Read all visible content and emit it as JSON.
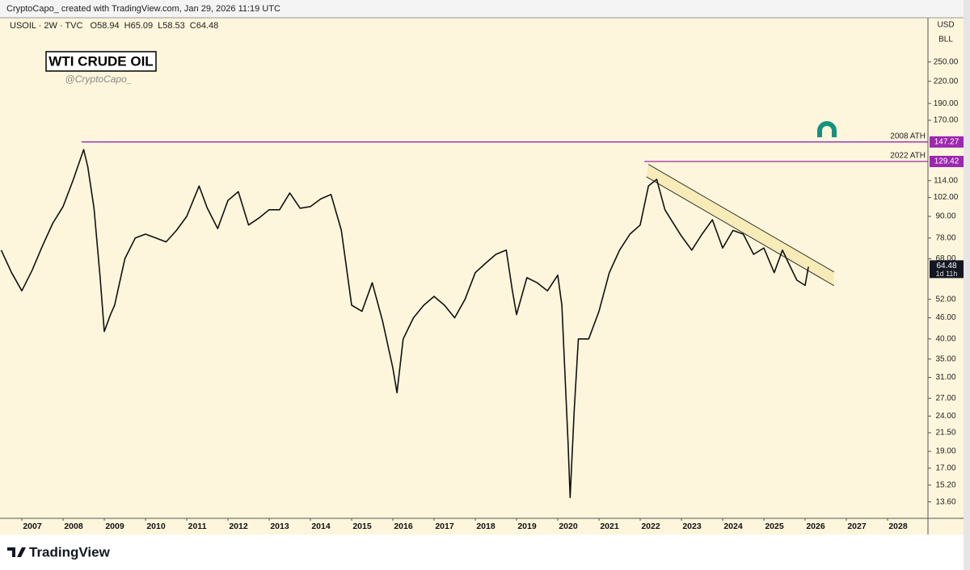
{
  "header": {
    "text": "CryptoCapo_ created with TradingView.com, Jan 29, 2026 11:19 UTC"
  },
  "symbol": {
    "name": "USOIL · 2W · TVC",
    "ohlc": [
      {
        "name": "O",
        "value": 58.94
      },
      {
        "name": "H",
        "value": 65.09
      },
      {
        "name": "L",
        "value": 58.53
      },
      {
        "name": "C",
        "value": 64.48
      }
    ]
  },
  "currency": "USD",
  "unit": "BLL",
  "footer": {
    "brand": "TradingView"
  },
  "chart_data": {
    "type": "line",
    "title": "WTI CRUDE OIL",
    "subtitle": "@CryptoCapo_",
    "log": true,
    "color": "#111111",
    "background": "#fdf6dc",
    "xlim": [
      2006.47,
      2028.98
    ],
    "xticks": [
      2007,
      2008,
      2009,
      2010,
      2011,
      2012,
      2013,
      2014,
      2015,
      2016,
      2017,
      2018,
      2019,
      2020,
      2021,
      2022,
      2023,
      2024,
      2025,
      2026,
      2027,
      2028
    ],
    "ylim": [
      12.2,
      335
    ],
    "yticks": [
      {
        "value": 250,
        "label": "250.00"
      },
      {
        "value": 220,
        "label": "220.00"
      },
      {
        "value": 190,
        "label": "190.00"
      },
      {
        "value": 170,
        "label": "170.00"
      },
      {
        "value": 114,
        "label": "114.00"
      },
      {
        "value": 102,
        "label": "102.00"
      },
      {
        "value": 90,
        "label": "90.00"
      },
      {
        "value": 78,
        "label": "78.00"
      },
      {
        "value": 68,
        "label": "68.00"
      },
      {
        "value": 52,
        "label": "52.00"
      },
      {
        "value": 46,
        "label": "46.00"
      },
      {
        "value": 40,
        "label": "40.00"
      },
      {
        "value": 35,
        "label": "35.00"
      },
      {
        "value": 31,
        "label": "31.00"
      },
      {
        "value": 27,
        "label": "27.00"
      },
      {
        "value": 24,
        "label": "24.00"
      },
      {
        "value": 21.5,
        "label": "21.50"
      },
      {
        "value": 19,
        "label": "19.00"
      },
      {
        "value": 17,
        "label": "17.00"
      },
      {
        "value": 15.2,
        "label": "15.20"
      },
      {
        "value": 13.6,
        "label": "13.60"
      }
    ],
    "x": [
      2006.5,
      2006.75,
      2007.0,
      2007.25,
      2007.5,
      2007.75,
      2008.0,
      2008.25,
      2008.5,
      2008.6,
      2008.75,
      2008.9,
      2009.0,
      2009.15,
      2009.25,
      2009.5,
      2009.75,
      2010.0,
      2010.25,
      2010.5,
      2010.75,
      2011.0,
      2011.3,
      2011.5,
      2011.75,
      2012.0,
      2012.25,
      2012.5,
      2012.75,
      2013.0,
      2013.25,
      2013.5,
      2013.75,
      2014.0,
      2014.25,
      2014.5,
      2014.75,
      2015.0,
      2015.25,
      2015.5,
      2015.75,
      2016.0,
      2016.1,
      2016.25,
      2016.5,
      2016.75,
      2017.0,
      2017.25,
      2017.5,
      2017.75,
      2018.0,
      2018.25,
      2018.5,
      2018.75,
      2018.9,
      2019.0,
      2019.25,
      2019.5,
      2019.75,
      2020.0,
      2020.1,
      2020.25,
      2020.3,
      2020.4,
      2020.5,
      2020.75,
      2021.0,
      2021.25,
      2021.5,
      2021.75,
      2022.0,
      2022.2,
      2022.4,
      2022.6,
      2022.75,
      2023.0,
      2023.25,
      2023.5,
      2023.75,
      2024.0,
      2024.25,
      2024.5,
      2024.75,
      2025.0,
      2025.25,
      2025.45,
      2025.6,
      2025.8,
      2026.0,
      2026.08
    ],
    "values": [
      72,
      62,
      55,
      63,
      74,
      86,
      96,
      115,
      140,
      125,
      95,
      60,
      42,
      47,
      50,
      68,
      78,
      80,
      78,
      76,
      82,
      90,
      110,
      95,
      83,
      100,
      106,
      85,
      89,
      94,
      94,
      105,
      95,
      96,
      101,
      104,
      82,
      50,
      48,
      58,
      45,
      33,
      28,
      40,
      46,
      50,
      53,
      50,
      46,
      52,
      62,
      66,
      70,
      72,
      55,
      47,
      60,
      58,
      55,
      61,
      50,
      20,
      14,
      25,
      40,
      40,
      48,
      62,
      72,
      80,
      85,
      110,
      115,
      94,
      88,
      79,
      72,
      80,
      88,
      73,
      82,
      80,
      70,
      73,
      62,
      72,
      66,
      59,
      57,
      64.48
    ],
    "last_price": 64.48,
    "countdown": "1d 11h",
    "last_color": "#131722",
    "levels": [
      {
        "label": "2008 ATH",
        "value": 147.27,
        "start": 2008.45,
        "color": "#9c27b0"
      },
      {
        "label": "2022 ATH",
        "value": 129.42,
        "start": 2022.1,
        "color": "#9c27b0"
      }
    ],
    "channel": {
      "fill": "#f6eab0",
      "color": "#333333",
      "upper": {
        "x": [
          2022.2,
          2026.7
        ],
        "y": [
          127,
          62.3
        ]
      },
      "lower": {
        "x": [
          2022.15,
          2026.7
        ],
        "y": [
          117,
          56.9
        ]
      }
    }
  }
}
